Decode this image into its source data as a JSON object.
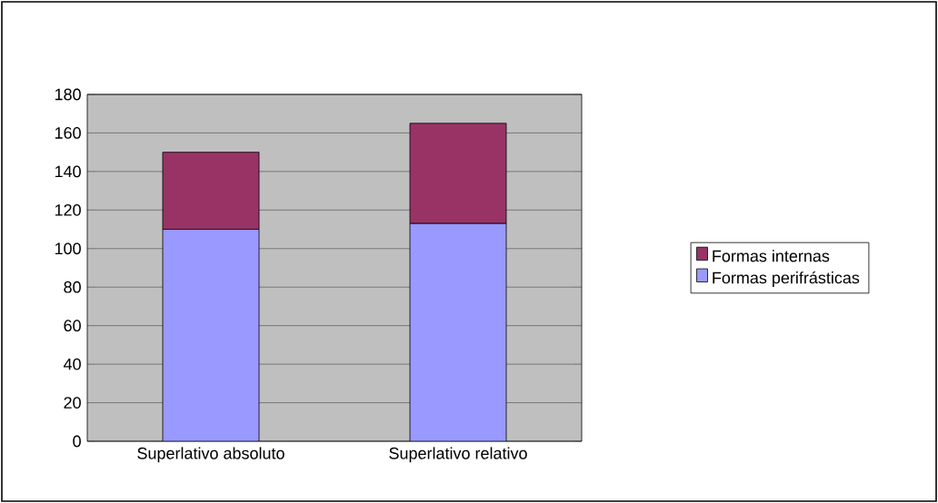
{
  "chart_data": {
    "type": "bar",
    "stacked": true,
    "categories": [
      "Superlativo absoluto",
      "Superlativo relativo"
    ],
    "series": [
      {
        "name": "Formas perifrásticas",
        "color": "#9999ff",
        "values": [
          110,
          113
        ]
      },
      {
        "name": "Formas internas",
        "color": "#993366",
        "values": [
          40,
          52
        ]
      }
    ],
    "ylim": [
      0,
      180
    ],
    "yticks": [
      0,
      20,
      40,
      60,
      80,
      100,
      120,
      140,
      160,
      180
    ],
    "grid": "y",
    "legend": "right"
  }
}
